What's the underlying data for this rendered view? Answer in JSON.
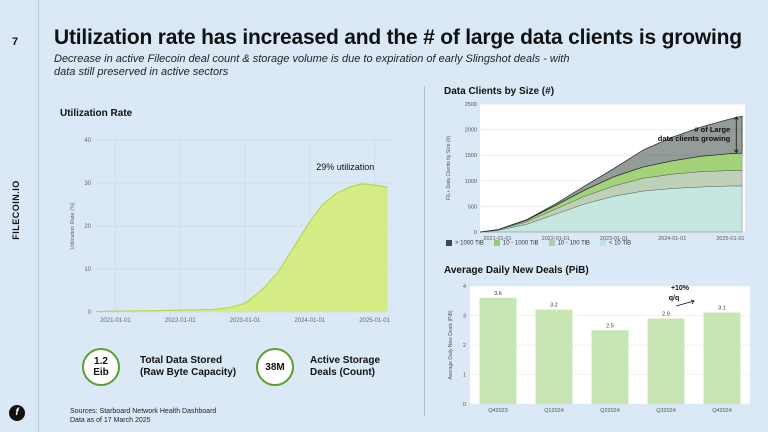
{
  "slide": {
    "page_number": "7",
    "brand": "FILECOIN.IO",
    "logo_glyph": "f",
    "title": "Utilization rate has increased and the # of large data clients is growing",
    "subtitle": "Decrease in active Filecoin deal count & storage volume is due to expiration of early Slingshot deals - with data still preserved in active sectors",
    "sources_line1": "Sources: Starboard Network Health Dashboard",
    "sources_line2": "Data as of 17 March 2025"
  },
  "stats": {
    "stored_value": "1.2 Eib",
    "stored_value_top": "1.2",
    "stored_value_bottom": "Eib",
    "stored_label_line1": "Total Data Stored",
    "stored_label_line2": "(Raw Byte Capacity)",
    "deals_value": "38M",
    "deals_label_line1": "Active Storage",
    "deals_label_line2": "Deals (Count)"
  },
  "colors": {
    "accent": "#5c9e2f",
    "util_fill": "#d6ec86",
    "util_line": "#b8d84f",
    "bar": "#c8e6b4"
  },
  "chart_data": [
    {
      "type": "area",
      "title": "Utilization Rate",
      "xlabel": "",
      "ylabel": "Utilization Rate (%)",
      "ylim": [
        0,
        40
      ],
      "yticks": [
        "0",
        "10",
        "20",
        "30",
        "40"
      ],
      "xticks": [
        "2021-01-01",
        "2022-01-01",
        "2023-01-01",
        "2024-01-01",
        "2025-01-01"
      ],
      "x": [
        2020.7,
        2021.0,
        2021.5,
        2022.0,
        2022.5,
        2022.75,
        2023.0,
        2023.25,
        2023.5,
        2023.75,
        2024.0,
        2024.2,
        2024.4,
        2024.6,
        2024.8,
        2025.0,
        2025.2
      ],
      "values": [
        0.1,
        0.2,
        0.3,
        0.4,
        0.6,
        1.0,
        2.0,
        5.0,
        9.0,
        15.0,
        21.0,
        25.0,
        27.5,
        29.0,
        29.8,
        29.5,
        29.0
      ],
      "annotation": "29% utilization"
    },
    {
      "type": "area",
      "stacked": true,
      "title": "Data Clients by Size (#)",
      "ylabel": "FIL+ Data Clients by Size (#)",
      "ylim": [
        0,
        2500
      ],
      "yticks": [
        "0",
        "500",
        "1000",
        "1500",
        "2000",
        "2500"
      ],
      "xticks": [
        "2021-01-01",
        "2022-01-01",
        "2023-01-01",
        "2024-01-01",
        "2025-01-01"
      ],
      "x": [
        2020.7,
        2021.0,
        2021.5,
        2022.0,
        2022.5,
        2023.0,
        2023.5,
        2024.0,
        2024.5,
        2025.0,
        2025.2
      ],
      "series": [
        {
          "name": "< 10 TiB",
          "values": [
            0,
            30,
            150,
            350,
            550,
            700,
            800,
            850,
            880,
            900,
            900
          ]
        },
        {
          "name": "10 - 100 TiB",
          "values": [
            0,
            10,
            50,
            100,
            150,
            200,
            250,
            280,
            300,
            300,
            300
          ]
        },
        {
          "name": "10 - 1000 TiB",
          "values": [
            0,
            5,
            30,
            70,
            120,
            180,
            220,
            260,
            300,
            330,
            340
          ]
        },
        {
          "name": "> 1000 TiB",
          "values": [
            0,
            0,
            10,
            30,
            80,
            160,
            330,
            460,
            570,
            680,
            720
          ]
        }
      ],
      "legend": [
        "> 1000 TiB",
        "10 - 1000 TiB",
        "10 - 100 TiB",
        "< 10 TiB"
      ],
      "annotation": "# of Large data clients growing"
    },
    {
      "type": "bar",
      "title": "Average Daily New Deals (PiB)",
      "ylabel": "Average Daily New Deals (PiB)",
      "categories": [
        "Q42023",
        "Q12024",
        "Q22024",
        "Q32024",
        "Q42024"
      ],
      "values": [
        3.6,
        3.2,
        2.5,
        2.9,
        3.1
      ],
      "labels": [
        "3.6",
        "3.2",
        "2.5",
        "2.9",
        "3.1"
      ],
      "ylim": [
        0,
        4
      ],
      "yticks": [
        "0",
        "1",
        "2",
        "3",
        "4"
      ],
      "annotation_line1": "+10%",
      "annotation_line2": "q/q"
    }
  ]
}
